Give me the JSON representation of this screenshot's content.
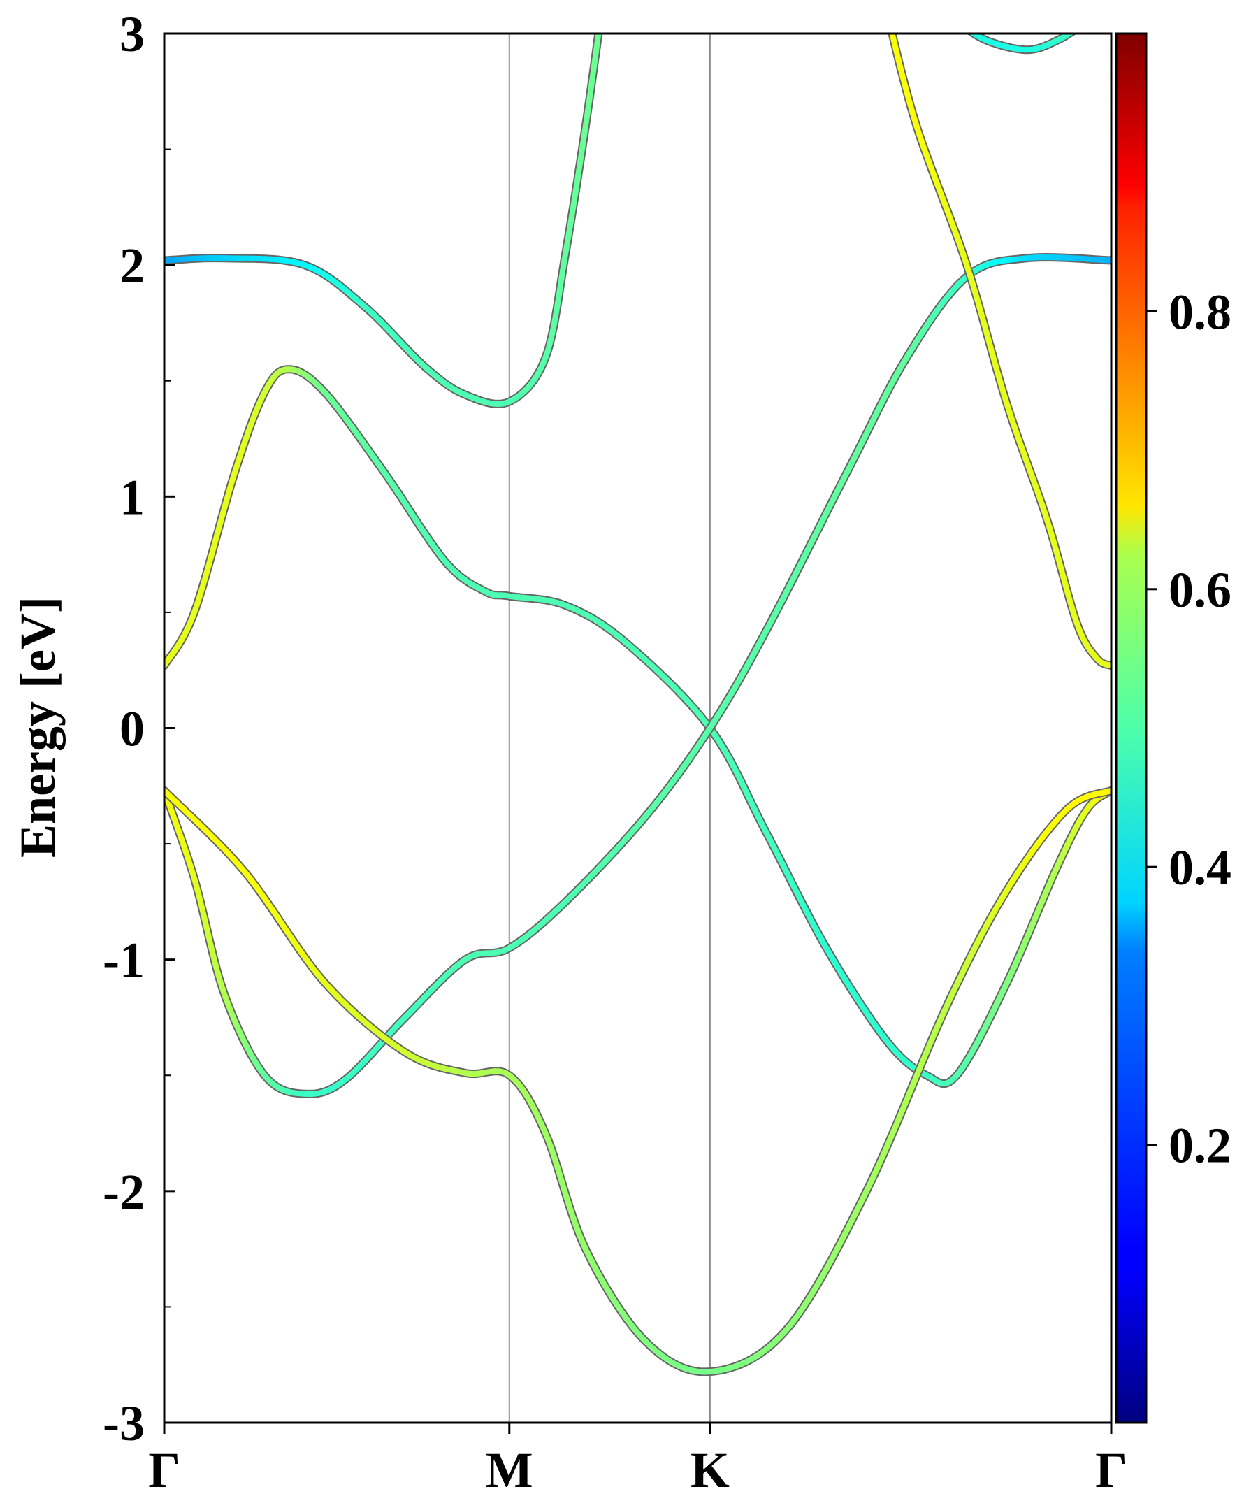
{
  "chart_data": {
    "type": "line",
    "title": "",
    "ylabel": "Energy [eV]",
    "xlabel": "",
    "ylim": [
      -3,
      3
    ],
    "yticks": [
      3,
      2,
      1,
      0,
      -1,
      -2,
      -3
    ],
    "ytick_labels": [
      "3",
      "2",
      "1",
      "0",
      "-1",
      "-2",
      "-3"
    ],
    "ytick_minor": [
      -2.5,
      -1.5,
      -0.5,
      0.5,
      1.5,
      2.5
    ],
    "xlim": [
      0,
      4.72
    ],
    "kpoints": [
      {
        "label": "Γ",
        "x": 0
      },
      {
        "label": "M",
        "x": 1.72
      },
      {
        "label": "K",
        "x": 2.72
      },
      {
        "label": "Γ",
        "x": 4.72
      }
    ],
    "colorbar": {
      "colormap": "jet",
      "range": [
        0,
        1
      ],
      "ticks": [
        0.2,
        0.4,
        0.6,
        0.8
      ],
      "tick_labels": [
        "0.2",
        "0.4",
        "0.6",
        "0.8"
      ]
    },
    "series": [
      {
        "points": [
          [
            0,
            2.02,
            0.28
          ],
          [
            0.3,
            2.03,
            0.33
          ],
          [
            0.7,
            2.0,
            0.37
          ],
          [
            1.0,
            1.82,
            0.43
          ],
          [
            1.3,
            1.56,
            0.45
          ],
          [
            1.5,
            1.44,
            0.45
          ],
          [
            1.72,
            1.41,
            0.45
          ],
          [
            1.9,
            1.6,
            0.46
          ],
          [
            2.0,
            2.05,
            0.47
          ],
          [
            2.1,
            2.6,
            0.48
          ],
          [
            2.18,
            3.1,
            0.48
          ]
        ]
      },
      {
        "points": [
          [
            0,
            0.27,
            0.6
          ],
          [
            0.15,
            0.5,
            0.6
          ],
          [
            0.35,
            1.1,
            0.6
          ],
          [
            0.5,
            1.45,
            0.58
          ],
          [
            0.62,
            1.55,
            0.55
          ],
          [
            0.8,
            1.45,
            0.48
          ],
          [
            1.1,
            1.1,
            0.46
          ],
          [
            1.4,
            0.72,
            0.45
          ],
          [
            1.6,
            0.59,
            0.45
          ],
          [
            1.72,
            0.57,
            0.45
          ],
          [
            2.0,
            0.53,
            0.45
          ],
          [
            2.3,
            0.37,
            0.45
          ],
          [
            2.72,
            0.0,
            0.45
          ],
          [
            3.0,
            -0.45,
            0.44
          ],
          [
            3.3,
            -0.95,
            0.42
          ],
          [
            3.6,
            -1.35,
            0.42
          ],
          [
            3.8,
            -1.5,
            0.43
          ],
          [
            3.95,
            -1.5,
            0.45
          ],
          [
            4.2,
            -1.1,
            0.5
          ],
          [
            4.45,
            -0.6,
            0.55
          ],
          [
            4.6,
            -0.35,
            0.6
          ],
          [
            4.72,
            -0.27,
            0.62
          ]
        ]
      },
      {
        "points": [
          [
            0,
            -0.27,
            0.62
          ],
          [
            0.15,
            -0.65,
            0.6
          ],
          [
            0.3,
            -1.15,
            0.55
          ],
          [
            0.5,
            -1.5,
            0.47
          ],
          [
            0.7,
            -1.58,
            0.43
          ],
          [
            0.9,
            -1.52,
            0.43
          ],
          [
            1.2,
            -1.25,
            0.44
          ],
          [
            1.5,
            -1.0,
            0.45
          ],
          [
            1.72,
            -0.95,
            0.45
          ],
          [
            2.0,
            -0.75,
            0.45
          ],
          [
            2.4,
            -0.38,
            0.46
          ],
          [
            2.72,
            0.0,
            0.46
          ],
          [
            3.0,
            0.42,
            0.46
          ],
          [
            3.4,
            1.1,
            0.47
          ],
          [
            3.7,
            1.6,
            0.47
          ],
          [
            4.0,
            1.95,
            0.43
          ],
          [
            4.3,
            2.03,
            0.34
          ],
          [
            4.72,
            2.02,
            0.3
          ]
        ]
      },
      {
        "points": [
          [
            0,
            -0.27,
            0.62
          ],
          [
            0.4,
            -0.62,
            0.62
          ],
          [
            0.8,
            -1.1,
            0.6
          ],
          [
            1.2,
            -1.4,
            0.58
          ],
          [
            1.5,
            -1.49,
            0.55
          ],
          [
            1.72,
            -1.5,
            0.54
          ],
          [
            1.9,
            -1.75,
            0.53
          ],
          [
            2.1,
            -2.25,
            0.52
          ],
          [
            2.4,
            -2.65,
            0.5
          ],
          [
            2.72,
            -2.78,
            0.49
          ],
          [
            3.1,
            -2.6,
            0.51
          ],
          [
            3.5,
            -2.0,
            0.53
          ],
          [
            3.9,
            -1.2,
            0.56
          ],
          [
            4.2,
            -0.7,
            0.6
          ],
          [
            4.5,
            -0.35,
            0.63
          ],
          [
            4.72,
            -0.27,
            0.63
          ]
        ]
      },
      {
        "points": [
          [
            3.6,
            3.1,
            0.62
          ],
          [
            3.75,
            2.6,
            0.62
          ],
          [
            4.0,
            2.0,
            0.6
          ],
          [
            4.2,
            1.4,
            0.6
          ],
          [
            4.4,
            0.9,
            0.6
          ],
          [
            4.55,
            0.45,
            0.6
          ],
          [
            4.65,
            0.3,
            0.6
          ],
          [
            4.72,
            0.27,
            0.6
          ]
        ]
      },
      {
        "points": [
          [
            3.95,
            3.05,
            0.4
          ],
          [
            4.1,
            2.97,
            0.4
          ],
          [
            4.3,
            2.93,
            0.4
          ],
          [
            4.45,
            2.97,
            0.42
          ],
          [
            4.6,
            3.05,
            0.45
          ]
        ]
      }
    ]
  }
}
